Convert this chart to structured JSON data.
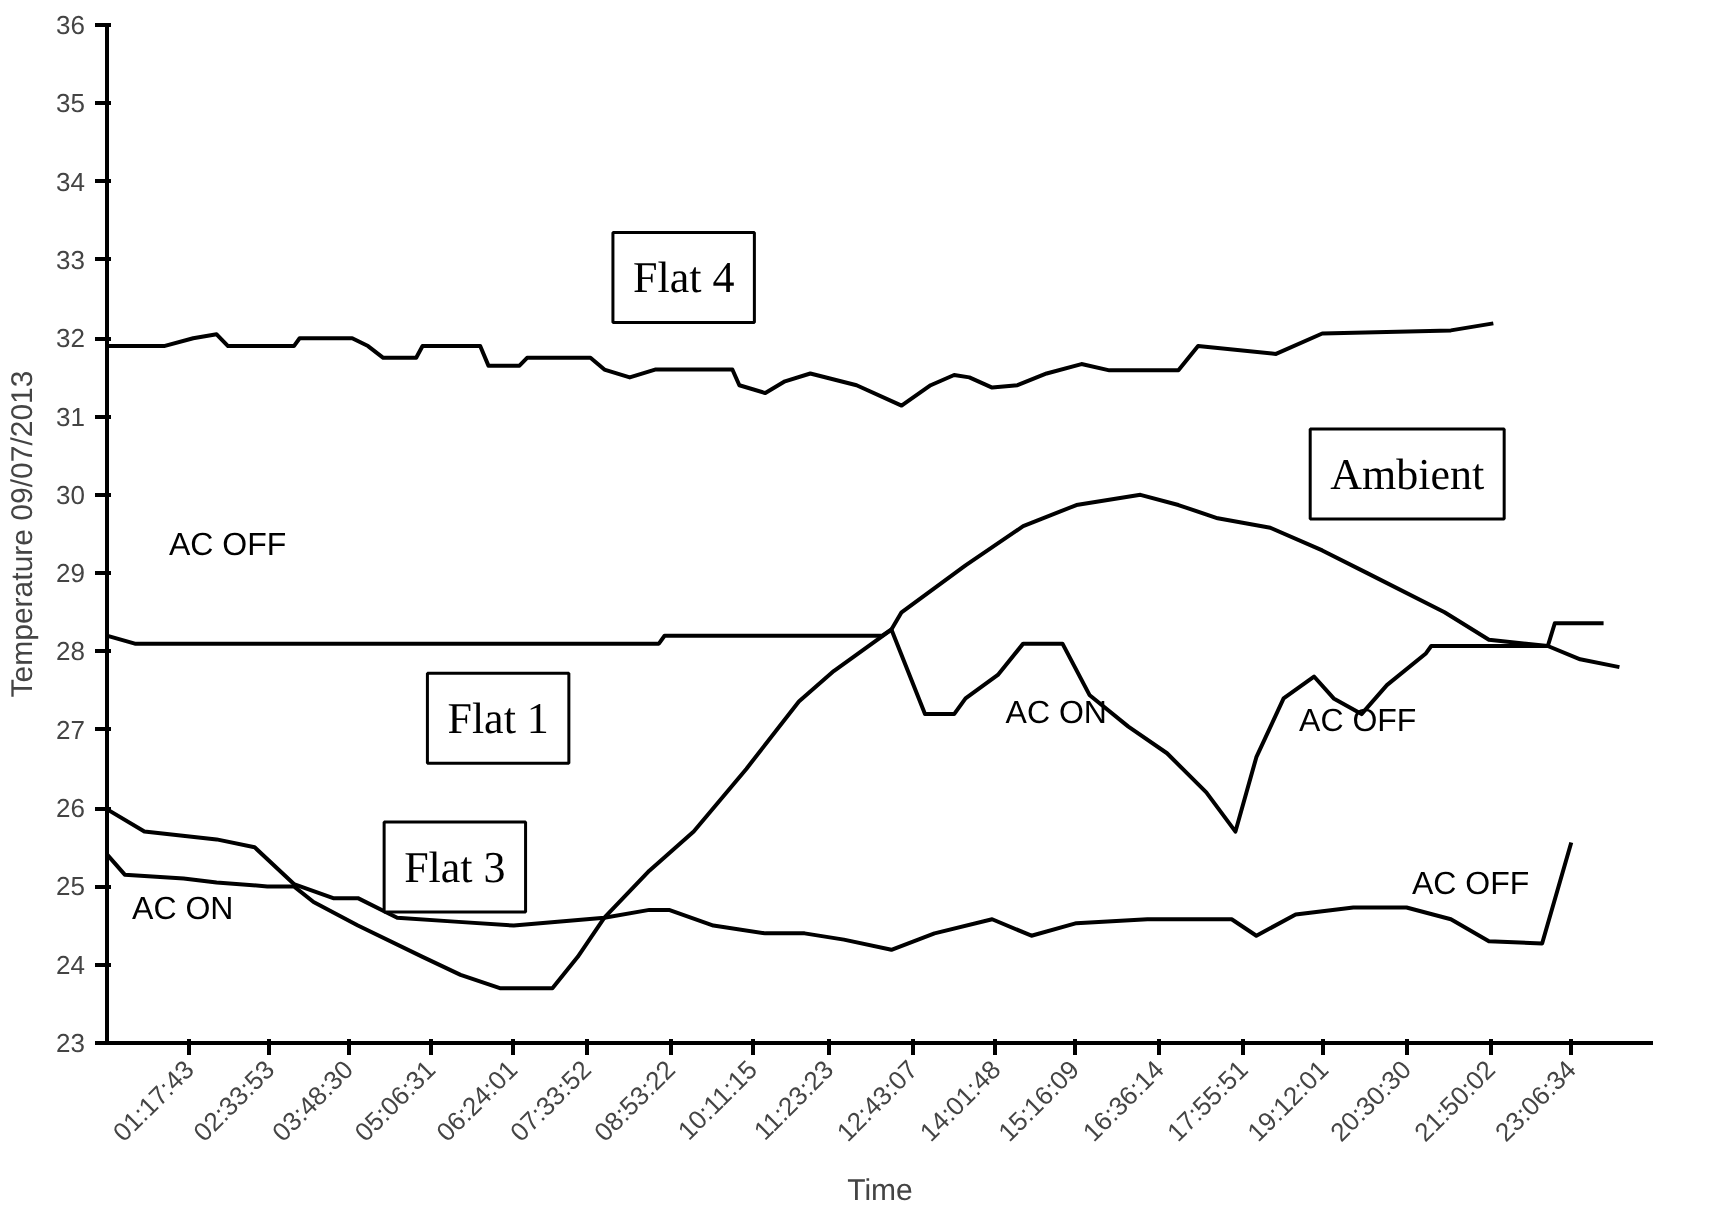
{
  "chart_data": {
    "type": "line",
    "xlabel": "Time",
    "ylabel": "Temperature 09/07/2013",
    "xlim": [
      0,
      24.4
    ],
    "ylim": [
      23,
      36
    ],
    "xticks": [
      {
        "value": 1.2953,
        "label": "01:17:43"
      },
      {
        "value": 2.5647,
        "label": "02:33:53"
      },
      {
        "value": 3.8083,
        "label": "03:48:30"
      },
      {
        "value": 5.1086,
        "label": "05:06:31"
      },
      {
        "value": 6.4003,
        "label": "06:24:01"
      },
      {
        "value": 7.5644,
        "label": "07:33:52"
      },
      {
        "value": 8.8894,
        "label": "08:53:22"
      },
      {
        "value": 10.1875,
        "label": "10:11:15"
      },
      {
        "value": 11.3897,
        "label": "11:23:23"
      },
      {
        "value": 12.7186,
        "label": "12:43:07"
      },
      {
        "value": 14.03,
        "label": "14:01:48"
      },
      {
        "value": 15.2692,
        "label": "15:16:09"
      },
      {
        "value": 16.6039,
        "label": "16:36:14"
      },
      {
        "value": 17.9308,
        "label": "17:55:51"
      },
      {
        "value": 19.2003,
        "label": "19:12:01"
      },
      {
        "value": 20.5083,
        "label": "20:30:30"
      },
      {
        "value": 21.8339,
        "label": "21:50:02"
      },
      {
        "value": 23.1094,
        "label": "23:06:34"
      }
    ],
    "yticks": [
      23,
      24,
      25,
      26,
      27,
      28,
      29,
      30,
      31,
      32,
      33,
      34,
      35,
      36
    ],
    "grid": false,
    "marker": "none",
    "line_style": "solid",
    "series": [
      {
        "color": "#000000",
        "x": [
          0.01,
          0.9,
          1.36,
          1.73,
          1.91,
          2.95,
          3.04,
          3.87,
          4.12,
          4.36,
          4.88,
          4.98,
          5.89,
          6.02,
          6.51,
          6.63,
          7.63,
          7.85,
          8.25,
          8.65,
          9.87,
          9.98,
          10.39,
          10.7,
          11.1,
          11.83,
          12.54,
          13.0,
          13.37,
          13.61,
          13.97,
          14.37,
          14.83,
          15.38,
          15.82,
          16.91,
          17.22,
          18.45,
          19.18,
          21.21,
          21.88
        ],
        "values": [
          31.9,
          31.9,
          32.0,
          32.05,
          31.9,
          31.9,
          32.0,
          32.0,
          31.9,
          31.75,
          31.75,
          31.9,
          31.9,
          31.65,
          31.65,
          31.75,
          31.75,
          31.6,
          31.5,
          31.6,
          31.6,
          31.4,
          31.3,
          31.45,
          31.55,
          31.4,
          31.14,
          31.4,
          31.53,
          31.5,
          31.37,
          31.4,
          31.55,
          31.67,
          31.59,
          31.59,
          31.9,
          31.8,
          32.06,
          32.1,
          32.19
        ]
      },
      {
        "color": "#000000",
        "x": [
          0.01,
          0.44,
          8.71,
          8.8,
          12.23,
          12.38,
          12.91,
          13.37,
          13.55,
          14.06,
          14.46,
          15.08,
          15.51,
          16.12,
          16.73,
          17.35,
          17.81,
          18.14,
          18.57,
          19.05,
          19.36,
          19.8,
          20.2,
          20.81,
          20.9,
          22.74,
          22.85,
          23.62
        ],
        "values": [
          28.2,
          28.1,
          28.1,
          28.2,
          28.2,
          28.28,
          27.2,
          27.2,
          27.4,
          27.7,
          28.1,
          28.1,
          27.44,
          27.04,
          26.7,
          26.2,
          25.7,
          26.65,
          27.4,
          27.68,
          27.4,
          27.2,
          27.57,
          27.97,
          28.07,
          28.07,
          28.36,
          28.36
        ]
      },
      {
        "color": "#000000",
        "x": [
          0.01,
          0.28,
          1.21,
          1.73,
          2.53,
          2.95,
          3.26,
          3.96,
          4.98,
          5.58,
          6.2,
          7.03,
          7.43,
          7.85,
          8.56,
          9.26,
          10.09,
          10.92,
          11.47,
          12.38,
          12.54,
          13.55,
          14.46,
          15.3,
          16.31,
          16.91,
          17.53,
          18.36,
          19.18,
          19.89,
          21.11,
          21.81,
          22.74,
          23.25,
          23.87
        ],
        "values": [
          25.4,
          25.15,
          25.1,
          25.05,
          25.0,
          25.0,
          24.8,
          24.5,
          24.1,
          23.87,
          23.7,
          23.7,
          24.1,
          24.6,
          25.2,
          25.7,
          26.5,
          27.36,
          27.75,
          28.28,
          28.5,
          29.1,
          29.6,
          29.87,
          30.0,
          29.87,
          29.7,
          29.58,
          29.29,
          29.0,
          28.5,
          28.15,
          28.07,
          27.9,
          27.8
        ]
      },
      {
        "color": "#000000",
        "x": [
          0.01,
          0.59,
          1.73,
          2.33,
          2.95,
          3.57,
          3.96,
          4.58,
          5.49,
          6.42,
          7.85,
          8.56,
          8.87,
          9.57,
          10.39,
          11.01,
          11.63,
          12.38,
          13.06,
          13.97,
          14.59,
          15.3,
          16.42,
          17.75,
          18.14,
          18.76,
          19.67,
          20.51,
          21.21,
          21.81,
          22.65,
          23.11
        ],
        "values": [
          25.98,
          25.7,
          25.6,
          25.5,
          25.03,
          24.85,
          24.85,
          24.6,
          24.55,
          24.5,
          24.6,
          24.7,
          24.7,
          24.5,
          24.4,
          24.4,
          24.32,
          24.19,
          24.4,
          24.58,
          24.37,
          24.53,
          24.58,
          24.58,
          24.37,
          24.64,
          24.73,
          24.73,
          24.58,
          24.3,
          24.27,
          25.56
        ]
      }
    ],
    "annotations": [
      "Flat 4",
      "Ambient",
      "Flat 1",
      "Flat 3",
      "AC OFF",
      "AC ON",
      "AC ON",
      "AC OFF",
      "AC OFF"
    ]
  }
}
